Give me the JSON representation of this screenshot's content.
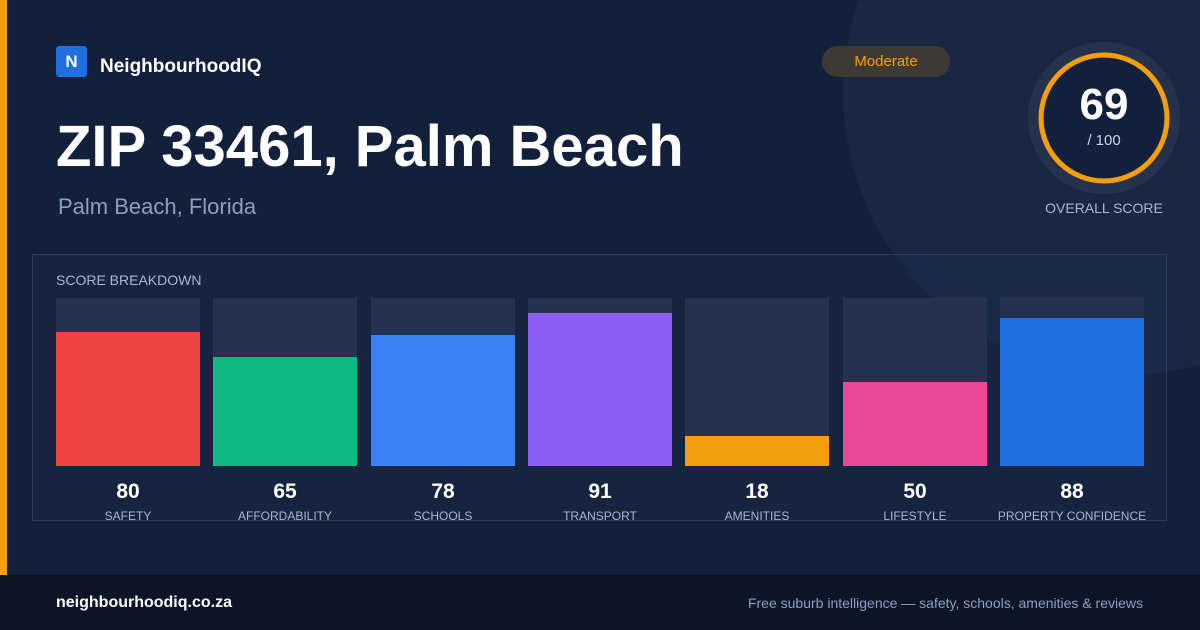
{
  "brand": {
    "logo_letter": "N",
    "name": "NeighbourhoodIQ"
  },
  "badge": {
    "label": "Moderate",
    "color": "#f59e0b"
  },
  "header": {
    "title": "ZIP 33461, Palm Beach",
    "subtitle": "Palm Beach, Florida"
  },
  "overall": {
    "score": "69",
    "max_label": "/ 100",
    "label": "OVERALL SCORE",
    "score_value": 69,
    "max_value": 100,
    "ring_color": "#f59e0b"
  },
  "breakdown": {
    "title": "SCORE BREAKDOWN",
    "items": [
      {
        "label": "SAFETY",
        "value": "80",
        "color": "#ef4444"
      },
      {
        "label": "AFFORDABILITY",
        "value": "65",
        "color": "#10b981"
      },
      {
        "label": "SCHOOLS",
        "value": "78",
        "color": "#3b82f6"
      },
      {
        "label": "TRANSPORT",
        "value": "91",
        "color": "#8b5cf6"
      },
      {
        "label": "AMENITIES",
        "value": "18",
        "color": "#f59e0b"
      },
      {
        "label": "LIFESTYLE",
        "value": "50",
        "color": "#ec4899"
      },
      {
        "label": "PROPERTY CONFIDENCE",
        "value": "88",
        "color": "#1f6fe0"
      }
    ]
  },
  "footer": {
    "domain": "neighbourhoodiq.co.za",
    "tagline": "Free suburb intelligence — safety, schools, amenities & reviews"
  }
}
